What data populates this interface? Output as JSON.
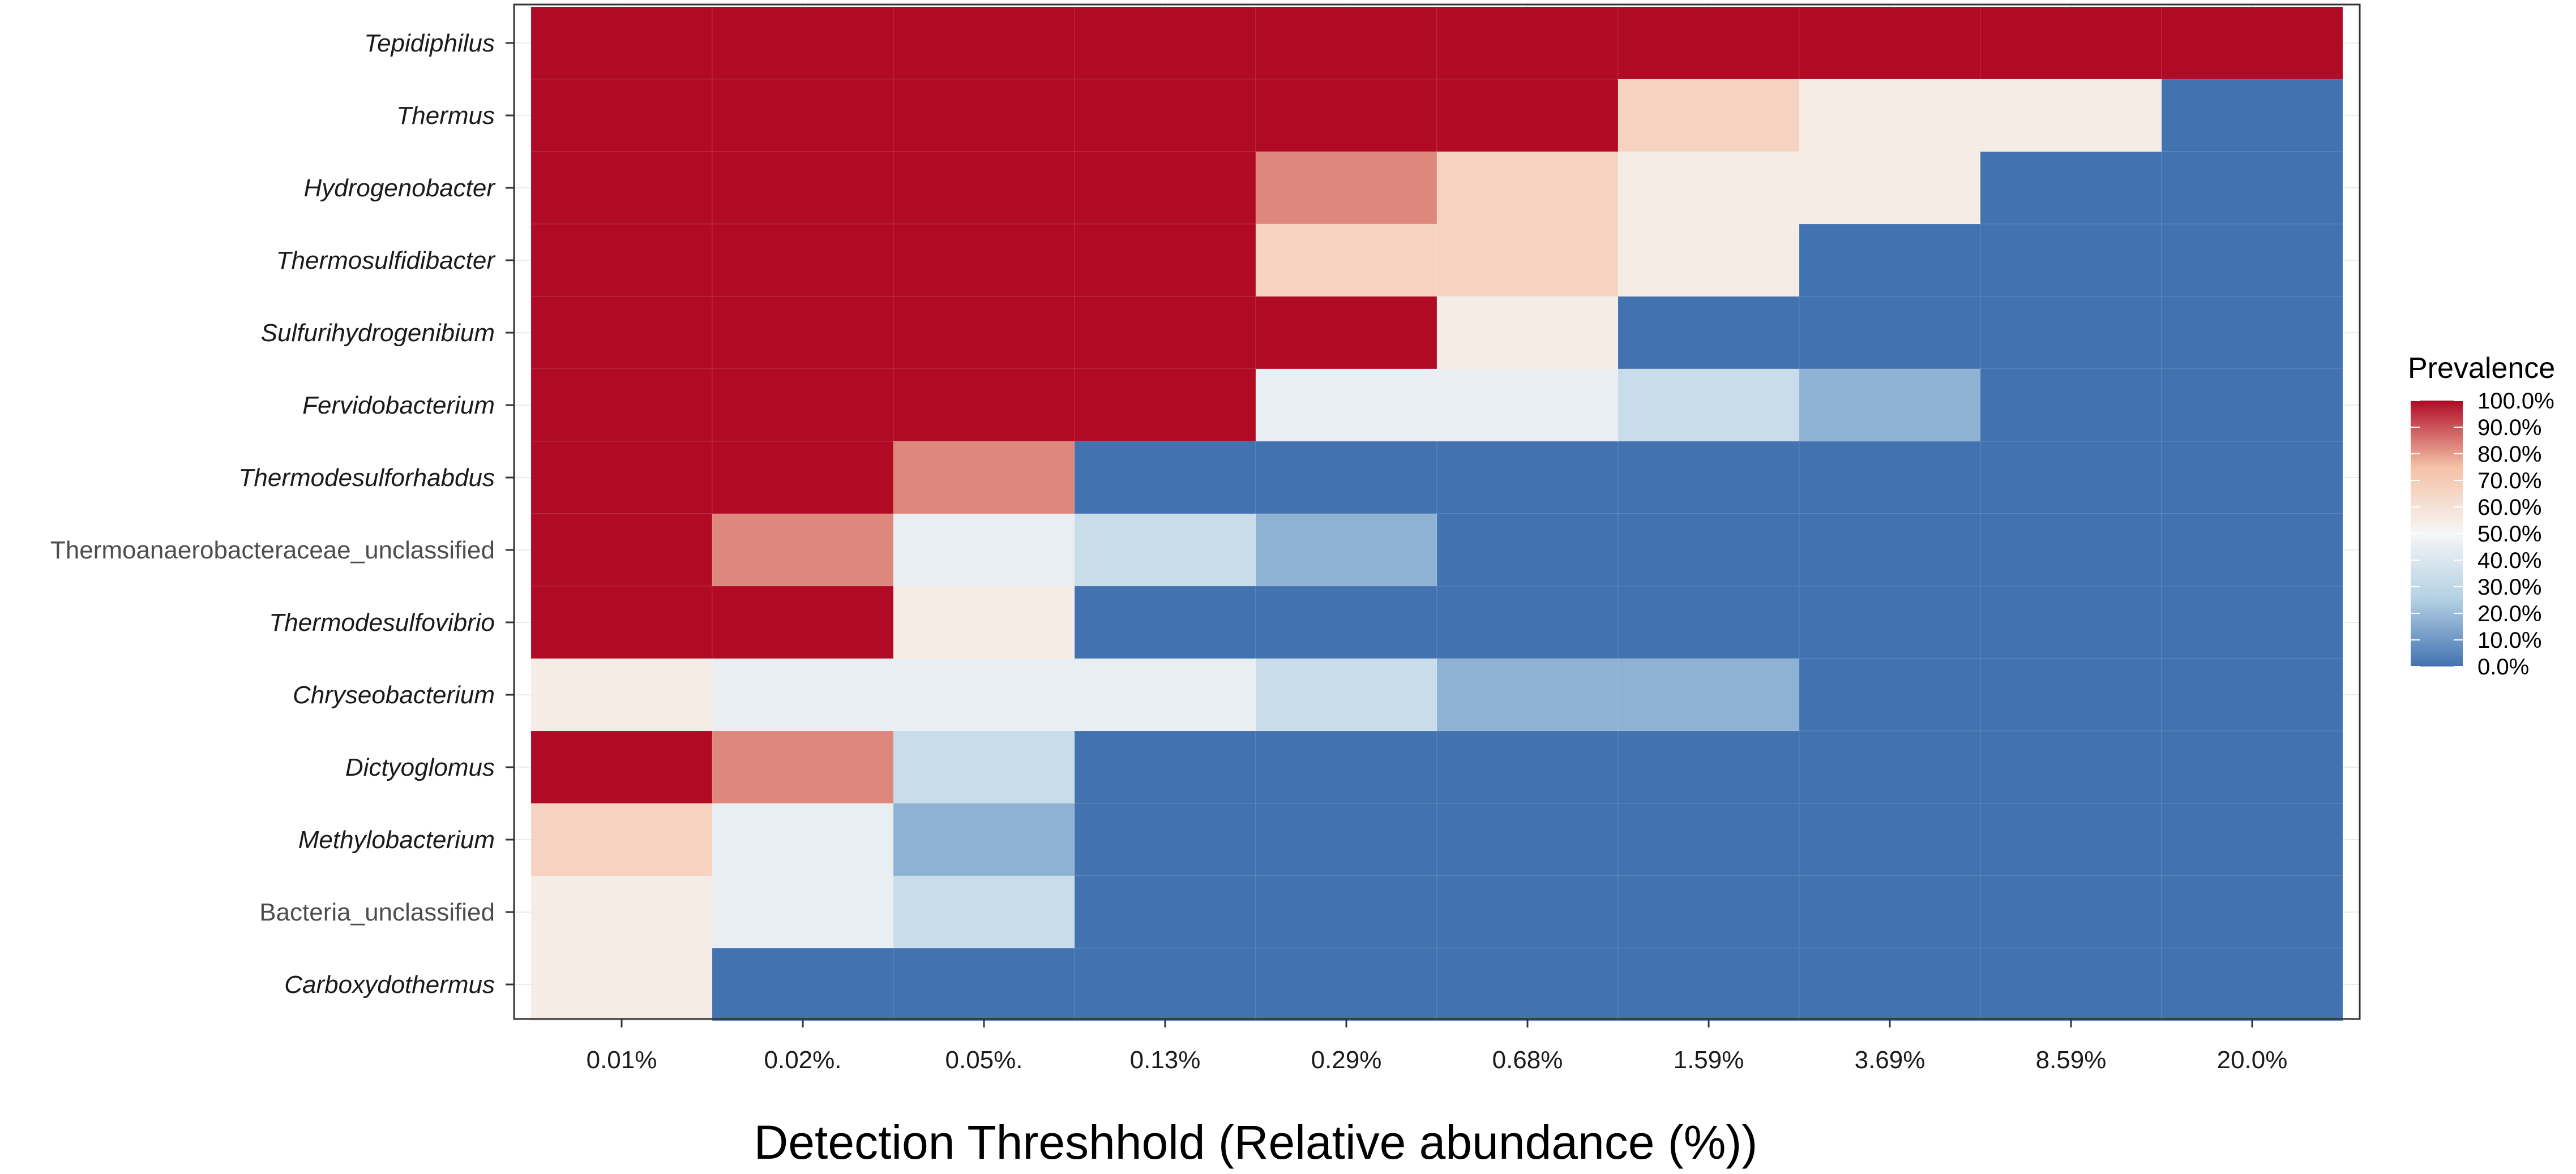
{
  "chart_data": {
    "type": "heatmap",
    "title": "",
    "xlabel": "Detection Threshhold (Relative abundance (%))",
    "ylabel": "",
    "x_categories": [
      "0.01%",
      "0.02%.",
      "0.05%.",
      "0.13%",
      "0.29%",
      "0.68%",
      "1.59%",
      "3.69%",
      "8.59%",
      "20.0%"
    ],
    "y_categories": [
      {
        "label": "Tepidiphilus",
        "italic": true
      },
      {
        "label": "Thermus",
        "italic": true
      },
      {
        "label": "Hydrogenobacter",
        "italic": true
      },
      {
        "label": "Thermosulfidibacter",
        "italic": true
      },
      {
        "label": "Sulfurihydrogenibium",
        "italic": true
      },
      {
        "label": "Fervidobacterium",
        "italic": true
      },
      {
        "label": "Thermodesulforhabdus",
        "italic": true
      },
      {
        "label": "Thermoanaerobacteraceae_unclassified",
        "italic": false
      },
      {
        "label": "Thermodesulfovibrio",
        "italic": true
      },
      {
        "label": "Chryseobacterium",
        "italic": true
      },
      {
        "label": "Dictyoglomus",
        "italic": true
      },
      {
        "label": "Methylobacterium",
        "italic": true
      },
      {
        "label": "Bacteria_unclassified",
        "italic": false
      },
      {
        "label": "Carboxydothermus",
        "italic": true
      }
    ],
    "values": [
      [
        100,
        100,
        100,
        100,
        100,
        100,
        100,
        100,
        100,
        100
      ],
      [
        100,
        100,
        100,
        100,
        100,
        100,
        67,
        55,
        55,
        0
      ],
      [
        100,
        100,
        100,
        100,
        83,
        67,
        55,
        55,
        0,
        0
      ],
      [
        100,
        100,
        100,
        100,
        67,
        67,
        55,
        0,
        0,
        0
      ],
      [
        100,
        100,
        100,
        100,
        100,
        55,
        0,
        0,
        0,
        0
      ],
      [
        100,
        100,
        100,
        100,
        45,
        45,
        33,
        17,
        0,
        0
      ],
      [
        100,
        100,
        83,
        0,
        0,
        0,
        0,
        0,
        0,
        0
      ],
      [
        100,
        83,
        45,
        33,
        17,
        0,
        0,
        0,
        0,
        0
      ],
      [
        100,
        100,
        55,
        0,
        0,
        0,
        0,
        0,
        0,
        0
      ],
      [
        55,
        45,
        45,
        45,
        33,
        17,
        17,
        0,
        0,
        0
      ],
      [
        100,
        83,
        33,
        0,
        0,
        0,
        0,
        0,
        0,
        0
      ],
      [
        67,
        45,
        17,
        0,
        0,
        0,
        0,
        0,
        0,
        0
      ],
      [
        55,
        45,
        33,
        0,
        0,
        0,
        0,
        0,
        0,
        0
      ],
      [
        55,
        0,
        0,
        0,
        0,
        0,
        0,
        0,
        0,
        0
      ]
    ],
    "value_range": [
      0,
      100
    ],
    "grid": true,
    "legend": {
      "title": "Prevalence",
      "position": "right",
      "labels": [
        "100.0%",
        "90.0%",
        "80.0%",
        "70.0%",
        "60.0%",
        "50.0%",
        "40.0%",
        "30.0%",
        "20.0%",
        "10.0%",
        "0.0%"
      ],
      "values": [
        100,
        90,
        80,
        70,
        60,
        50,
        40,
        30,
        20,
        10,
        0
      ]
    },
    "colors": {
      "low": "#4372b0",
      "low_mid": "#b2d0e3",
      "mid": "#f6f6f6",
      "high_mid": "#f4c2a6",
      "high": "#b00a25"
    }
  }
}
